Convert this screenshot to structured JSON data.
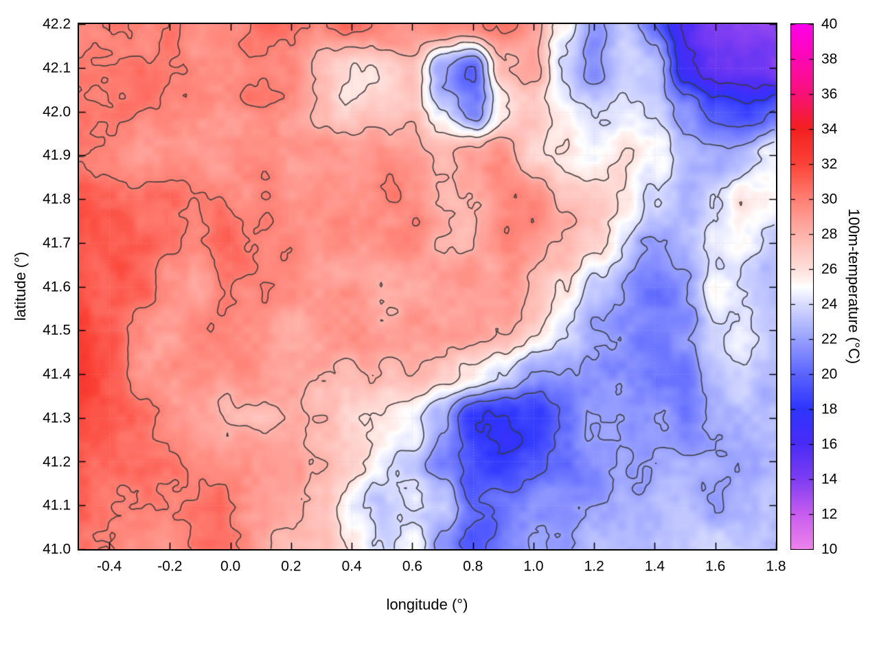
{
  "figure": {
    "background": "#ffffff"
  },
  "chart_data": {
    "type": "heatmap",
    "title": "",
    "xlabel": "longitude (°)",
    "ylabel": "latitude (°)",
    "colorbar_label": "100m-temperature (°C)",
    "x_range": [
      -0.5,
      1.8
    ],
    "y_range": [
      41.0,
      42.2
    ],
    "x_tick_values": [
      -0.4,
      -0.2,
      0.0,
      0.2,
      0.4,
      0.6,
      0.8,
      1.0,
      1.2,
      1.4,
      1.6,
      1.8
    ],
    "x_tick_labels": [
      "-0.4",
      "-0.2",
      "0.0",
      "0.2",
      "0.4",
      "0.6",
      "0.8",
      "1.0",
      "1.2",
      "1.4",
      "1.6",
      "1.8"
    ],
    "y_tick_values": [
      41.0,
      41.1,
      41.2,
      41.3,
      41.4,
      41.5,
      41.6,
      41.7,
      41.8,
      41.9,
      42.0,
      42.1,
      42.2
    ],
    "y_tick_labels": [
      "41.0",
      "41.1",
      "41.2",
      "41.3",
      "41.4",
      "41.5",
      "41.6",
      "41.7",
      "41.8",
      "41.9",
      "42.0",
      "42.1",
      "42.2"
    ],
    "colorbar_range": [
      10,
      40
    ],
    "colorbar_tick_values": [
      10,
      12,
      14,
      16,
      18,
      20,
      22,
      24,
      26,
      28,
      30,
      32,
      34,
      36,
      38,
      40
    ],
    "colorbar_tick_labels": [
      "10",
      "12",
      "14",
      "16",
      "18",
      "20",
      "22",
      "24",
      "26",
      "28",
      "30",
      "32",
      "34",
      "36",
      "38",
      "40"
    ],
    "contour_levels": [
      16,
      18,
      20,
      22,
      24,
      26,
      28,
      30
    ],
    "contour_color": "#3a3a3a",
    "grid_line_color": "#bbbbbb",
    "colormap_stops": [
      {
        "value": 10,
        "color": "#ee82ec"
      },
      {
        "value": 12,
        "color": "#c75df0"
      },
      {
        "value": 14,
        "color": "#7d3df2"
      },
      {
        "value": 16,
        "color": "#4a2cf5"
      },
      {
        "value": 18,
        "color": "#2e34fd"
      },
      {
        "value": 20,
        "color": "#5b64ff"
      },
      {
        "value": 22,
        "color": "#97a0ff"
      },
      {
        "value": 24,
        "color": "#d8dcff"
      },
      {
        "value": 25,
        "color": "#ffffff"
      },
      {
        "value": 26,
        "color": "#ffdeda"
      },
      {
        "value": 28,
        "color": "#ffb2aa"
      },
      {
        "value": 30,
        "color": "#ff7f73"
      },
      {
        "value": 32,
        "color": "#fb4338"
      },
      {
        "value": 34,
        "color": "#f2201f"
      },
      {
        "value": 36,
        "color": "#f81277"
      },
      {
        "value": 38,
        "color": "#fd08b4"
      },
      {
        "value": 40,
        "color": "#ff00ea"
      }
    ],
    "temperature_grid": {
      "lon_min": -0.5,
      "lon_max": 1.8,
      "lat_top": 42.2,
      "lat_bottom": 41.0,
      "cols": 24,
      "rows": 13,
      "values": [
        [
          30,
          30,
          30,
          30,
          29.5,
          29.5,
          30,
          29.5,
          29,
          29.5,
          29.5,
          29,
          29.5,
          29.5,
          30,
          29,
          25,
          21,
          23,
          20,
          16,
          14.5,
          14,
          13.5
        ],
        [
          30,
          30,
          30,
          29.5,
          29,
          29,
          29.5,
          29,
          27,
          26,
          26.5,
          28,
          22,
          20.5,
          28,
          29,
          24.5,
          22,
          24,
          23,
          17,
          15,
          14.5,
          13.5
        ],
        [
          30.5,
          30,
          30,
          29.5,
          29,
          29,
          29.5,
          29,
          27.5,
          26.5,
          27,
          27.5,
          24,
          21.5,
          26,
          27,
          25,
          24.5,
          25,
          24,
          21,
          19,
          18,
          20
        ],
        [
          30.5,
          30,
          29.5,
          29.5,
          29.5,
          29.5,
          29.5,
          29,
          28.5,
          28,
          28.5,
          28,
          26.5,
          27.5,
          28.5,
          26,
          25.5,
          25,
          26,
          24.5,
          23,
          22.5,
          23,
          24
        ],
        [
          31,
          30.5,
          30,
          30,
          29.5,
          29.5,
          29.5,
          29.5,
          29,
          29,
          29,
          28.5,
          28,
          28.5,
          29,
          28.5,
          27,
          26.5,
          25.5,
          23.5,
          22.5,
          23,
          25,
          25.5
        ],
        [
          31,
          31,
          30.5,
          30,
          29.5,
          30,
          29.5,
          29.5,
          29,
          29,
          29,
          29,
          28.5,
          29,
          29.5,
          28.5,
          27.5,
          26,
          23.5,
          22,
          22.5,
          23.5,
          24,
          23.5
        ],
        [
          31.5,
          31,
          30.5,
          29,
          28.5,
          29.5,
          29,
          28.5,
          29,
          29,
          28.5,
          29,
          29,
          29.5,
          29,
          27.5,
          25.5,
          23,
          21.5,
          21.5,
          22,
          24.5,
          23,
          22.5
        ],
        [
          32,
          31.5,
          30,
          29,
          29,
          29.5,
          29.5,
          28,
          28.5,
          28.5,
          28,
          28.5,
          29,
          29.5,
          28.5,
          26,
          23.5,
          21.5,
          21,
          21,
          21.5,
          23,
          23.5,
          23
        ],
        [
          32,
          31,
          29.5,
          29,
          29.5,
          29,
          29,
          28.5,
          27.5,
          27,
          27.5,
          28,
          27,
          26,
          24,
          21.5,
          21,
          20.5,
          21,
          20.5,
          20.5,
          22.5,
          23,
          23
        ],
        [
          31.5,
          31,
          30.5,
          29.5,
          29.5,
          28.5,
          28,
          28.5,
          28,
          26.5,
          26,
          25.5,
          22.5,
          18,
          17.5,
          18,
          19.5,
          21,
          21.5,
          22,
          21,
          22.5,
          23,
          23
        ],
        [
          31,
          31,
          30.5,
          30,
          29.5,
          29,
          28.5,
          28.5,
          27,
          26,
          25,
          24.5,
          21,
          18.5,
          18,
          19,
          20.5,
          21.5,
          22,
          22,
          22,
          22.5,
          22.5,
          23
        ],
        [
          31,
          30.5,
          30.5,
          30,
          29.5,
          29.5,
          29,
          28.5,
          27,
          24,
          23.5,
          25,
          23,
          19.5,
          20.5,
          21.5,
          22,
          22,
          22.5,
          22.5,
          22.5,
          22.5,
          23,
          23
        ],
        [
          31,
          30.5,
          30,
          29.5,
          29.5,
          29.5,
          29,
          28,
          27,
          25.5,
          24,
          25,
          21.5,
          19,
          21,
          22,
          22.5,
          22.5,
          22.5,
          22.5,
          22.5,
          23,
          23,
          23
        ]
      ]
    }
  }
}
